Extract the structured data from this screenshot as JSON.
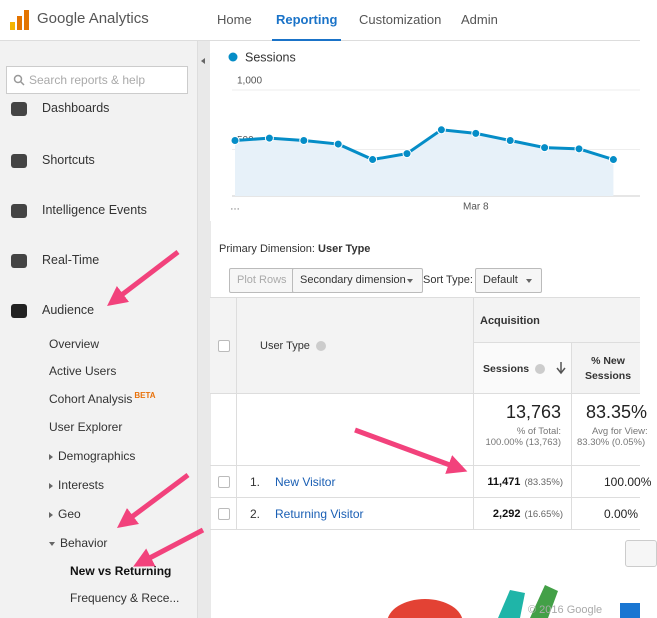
{
  "header": {
    "logo": "Google Analytics",
    "nav": [
      {
        "label": "Home",
        "active": false
      },
      {
        "label": "Reporting",
        "active": true
      },
      {
        "label": "Customization",
        "active": false
      },
      {
        "label": "Admin",
        "active": false
      }
    ]
  },
  "sidebar": {
    "search_placeholder": "Search reports & help",
    "items": [
      "Dashboards",
      "Shortcuts",
      "Intelligence Events",
      "Real-Time",
      "Audience"
    ],
    "audience_items": [
      {
        "label": "Overview",
        "toggle": "none",
        "selected": false
      },
      {
        "label": "Active Users",
        "toggle": "none",
        "selected": false
      },
      {
        "label": "Cohort Analysis",
        "badge": "BETA",
        "toggle": "none",
        "selected": false
      },
      {
        "label": "User Explorer",
        "toggle": "none",
        "selected": false
      },
      {
        "label": "Demographics",
        "toggle": "closed",
        "selected": false
      },
      {
        "label": "Interests",
        "toggle": "closed",
        "selected": false
      },
      {
        "label": "Geo",
        "toggle": "closed",
        "selected": false
      },
      {
        "label": "Behavior",
        "toggle": "open",
        "selected": false
      },
      {
        "label": "New vs Returning",
        "toggle": "child",
        "selected": true
      },
      {
        "label": "Frequency & Rece...",
        "toggle": "child",
        "selected": false
      }
    ]
  },
  "sessions_chart": {
    "type": "line",
    "categories": [
      null,
      null,
      null,
      null,
      null,
      null,
      null,
      "Mar 8",
      null,
      null,
      null,
      null
    ],
    "x_start_label": "…",
    "series": [
      {
        "name": "Sessions",
        "color": "#058dc7",
        "values": [
          500,
          520,
          500,
          470,
          340,
          390,
          590,
          560,
          500,
          440,
          430,
          340
        ]
      }
    ],
    "ylim": [
      0,
      1000
    ],
    "yticks": [
      {
        "value": 1000,
        "label": "1,000"
      },
      500
    ]
  },
  "report": {
    "primary_dimension_label": "Primary Dimension:",
    "primary_dimension": "User Type",
    "plot_rows": "Plot Rows",
    "secondary_dimension": "Secondary dimension",
    "sort_type_label": "Sort Type:",
    "sort_type": "Default",
    "table": {
      "group_header": "Acquisition",
      "columns": [
        "User Type",
        "Sessions",
        "% New Sessions"
      ],
      "totals": {
        "sessions": "13,763",
        "sessions_note": "% of Total:",
        "sessions_sub": "100.00% (13,763)",
        "new_sessions": "83.35%",
        "new_sessions_note": "Avg for View:",
        "new_sessions_sub": "83.30% (0.05%)"
      },
      "rows": [
        {
          "index": "1.",
          "user_type": "New Visitor",
          "sessions": "11,471",
          "sessions_pct": "(83.35%)",
          "new_sessions": "100.00%"
        },
        {
          "index": "2.",
          "user_type": "Returning Visitor",
          "sessions": "2,292",
          "sessions_pct": "(16.65%)",
          "new_sessions": "0.00%"
        }
      ]
    }
  },
  "footer": "© 2016 Google"
}
